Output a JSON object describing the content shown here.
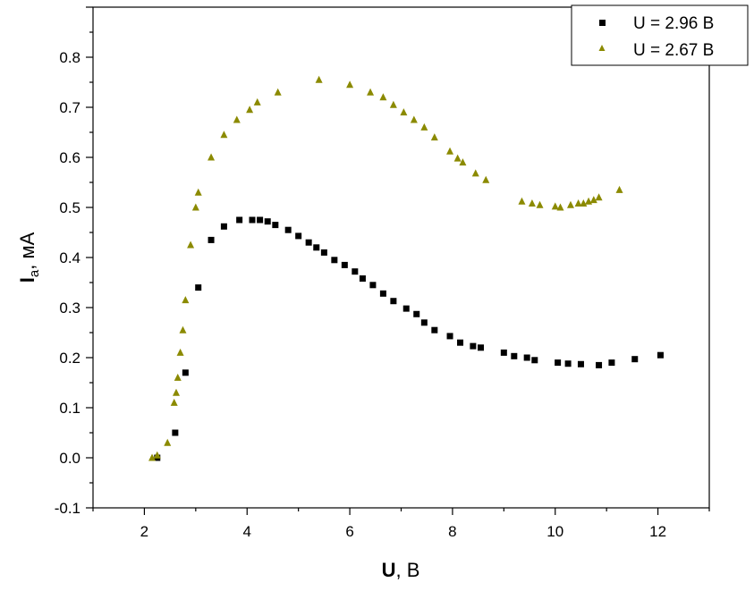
{
  "chart_data": {
    "type": "scatter",
    "xlabel": {
      "main": "U",
      "unit": ", В"
    },
    "ylabel": {
      "main": "I",
      "sub": "a",
      "unit": ", мА"
    },
    "xlim": [
      1,
      13
    ],
    "ylim": [
      -0.1,
      0.9
    ],
    "x_ticks": [
      2,
      4,
      6,
      8,
      10,
      12
    ],
    "x_tick_labels": [
      "2",
      "4",
      "6",
      "8",
      "10",
      "12"
    ],
    "y_ticks": [
      -0.1,
      0.0,
      0.1,
      0.2,
      0.3,
      0.4,
      0.5,
      0.6,
      0.7,
      0.8
    ],
    "y_tick_labels": [
      "-0.1",
      "0.0",
      "0.1",
      "0.2",
      "0.3",
      "0.4",
      "0.5",
      "0.6",
      "0.7",
      "0.8"
    ],
    "grid": false,
    "legend_position": "top-right",
    "series": [
      {
        "name": "U = 2.96 В",
        "marker": "square",
        "color": "#000000",
        "x": [
          2.25,
          2.6,
          2.8,
          3.05,
          3.3,
          3.55,
          3.85,
          4.1,
          4.25,
          4.4,
          4.55,
          4.8,
          5.0,
          5.2,
          5.35,
          5.5,
          5.7,
          5.9,
          6.1,
          6.25,
          6.45,
          6.65,
          6.85,
          7.1,
          7.3,
          7.45,
          7.65,
          7.95,
          8.15,
          8.4,
          8.55,
          9.0,
          9.2,
          9.45,
          9.6,
          10.05,
          10.25,
          10.5,
          10.85,
          11.1,
          11.55,
          12.05
        ],
        "y": [
          0.0,
          0.05,
          0.17,
          0.34,
          0.435,
          0.462,
          0.475,
          0.475,
          0.475,
          0.472,
          0.465,
          0.455,
          0.443,
          0.43,
          0.42,
          0.41,
          0.395,
          0.385,
          0.372,
          0.358,
          0.345,
          0.328,
          0.313,
          0.298,
          0.287,
          0.27,
          0.255,
          0.243,
          0.23,
          0.223,
          0.22,
          0.21,
          0.203,
          0.2,
          0.195,
          0.19,
          0.188,
          0.187,
          0.185,
          0.19,
          0.197,
          0.205
        ]
      },
      {
        "name": "U = 2.67 В",
        "marker": "triangle",
        "color": "#8b8a00",
        "x": [
          2.15,
          2.25,
          2.45,
          2.58,
          2.62,
          2.65,
          2.7,
          2.75,
          2.8,
          2.9,
          3.0,
          3.05,
          3.3,
          3.55,
          3.8,
          4.05,
          4.2,
          4.6,
          5.4,
          6.0,
          6.4,
          6.65,
          6.85,
          7.05,
          7.25,
          7.45,
          7.65,
          7.95,
          8.1,
          8.2,
          8.45,
          8.65,
          9.35,
          9.55,
          9.7,
          10.0,
          10.1,
          10.3,
          10.45,
          10.55,
          10.65,
          10.75,
          10.85,
          11.25
        ],
        "y": [
          0.0,
          0.005,
          0.03,
          0.11,
          0.13,
          0.16,
          0.21,
          0.255,
          0.315,
          0.425,
          0.5,
          0.53,
          0.6,
          0.645,
          0.675,
          0.695,
          0.71,
          0.73,
          0.755,
          0.745,
          0.73,
          0.72,
          0.705,
          0.69,
          0.675,
          0.66,
          0.64,
          0.612,
          0.598,
          0.59,
          0.568,
          0.555,
          0.512,
          0.508,
          0.505,
          0.502,
          0.5,
          0.505,
          0.508,
          0.508,
          0.512,
          0.515,
          0.52,
          0.535
        ]
      }
    ]
  }
}
